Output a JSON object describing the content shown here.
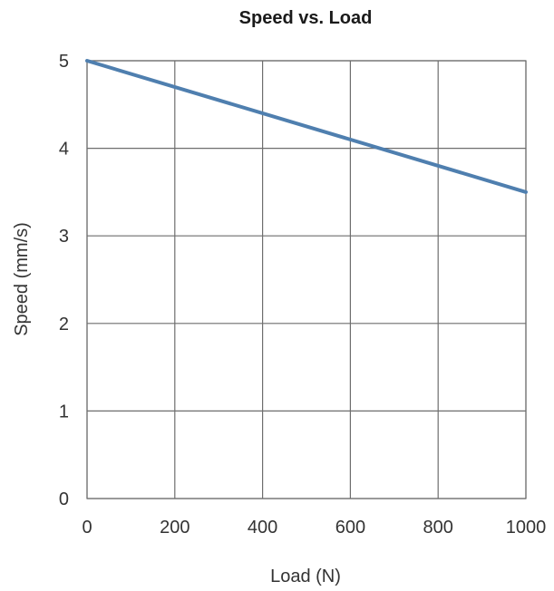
{
  "chart_data": {
    "type": "line",
    "title": "Speed vs. Load",
    "xlabel": "Load (N)",
    "ylabel": "Speed (mm/s)",
    "xlim": [
      0,
      1000
    ],
    "ylim": [
      0,
      5
    ],
    "x_ticks": [
      0,
      200,
      400,
      600,
      800,
      1000
    ],
    "y_ticks": [
      0,
      1,
      2,
      3,
      4,
      5
    ],
    "x_tick_labels": [
      "0",
      "200",
      "400",
      "600",
      "800",
      "1000"
    ],
    "y_tick_labels": [
      "0",
      "1",
      "2",
      "3",
      "4",
      "5"
    ],
    "grid": true,
    "series": [
      {
        "x": [
          0,
          1000
        ],
        "y": [
          5,
          3.5
        ],
        "color": "#4f7faf"
      }
    ]
  }
}
